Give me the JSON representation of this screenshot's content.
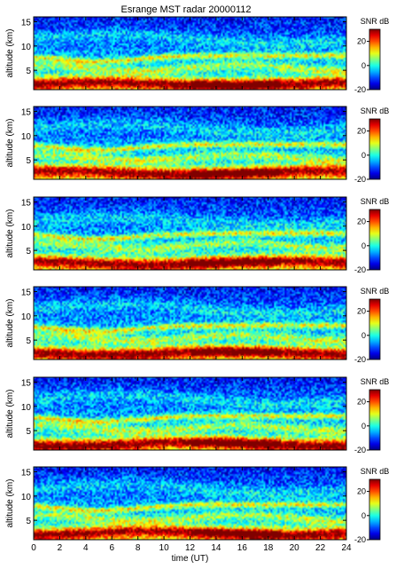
{
  "figure": {
    "title": "Esrange MST radar 20000112"
  },
  "colors": {
    "colormap": "jet",
    "text": "#000000",
    "axis": "#000000"
  },
  "chart_data": [
    {
      "type": "heatmap",
      "title": "Esrange MST radar 20000112",
      "xlabel": "",
      "ylabel": "altitude (km)",
      "xlim": [
        0,
        24
      ],
      "ylim": [
        1,
        16
      ],
      "xticks": [
        0,
        2,
        4,
        6,
        8,
        10,
        12,
        14,
        16,
        18,
        20,
        22,
        24
      ],
      "yticks": [
        5,
        10,
        15
      ],
      "colorbar": {
        "label": "SNR dB",
        "range": [
          -20,
          30
        ],
        "ticks": [
          20,
          0,
          -20
        ]
      },
      "features": {
        "strong_layer_low_km": 2.2,
        "layer_mid_km": 5.5,
        "tropopause_km": 8.0,
        "upper_layer_km": 11.5
      }
    },
    {
      "type": "heatmap",
      "xlabel": "",
      "ylabel": "altitude (km)",
      "xlim": [
        0,
        24
      ],
      "ylim": [
        1,
        16
      ],
      "xticks": [
        0,
        2,
        4,
        6,
        8,
        10,
        12,
        14,
        16,
        18,
        20,
        22,
        24
      ],
      "yticks": [
        5,
        10,
        15
      ],
      "colorbar": {
        "label": "SNR dB",
        "range": [
          -20,
          30
        ],
        "ticks": [
          20,
          0,
          -20
        ]
      },
      "features": {
        "strong_layer_low_km": 2.4,
        "layer_mid_km": 5.5,
        "tropopause_km": 8.2,
        "upper_layer_km": 11.5
      }
    },
    {
      "type": "heatmap",
      "xlabel": "",
      "ylabel": "altitude (km)",
      "xlim": [
        0,
        24
      ],
      "ylim": [
        1,
        16
      ],
      "xticks": [
        0,
        2,
        4,
        6,
        8,
        10,
        12,
        14,
        16,
        18,
        20,
        22,
        24
      ],
      "yticks": [
        5,
        10,
        15
      ],
      "colorbar": {
        "label": "SNR dB",
        "range": [
          -20,
          30
        ],
        "ticks": [
          20,
          0,
          -20
        ]
      },
      "features": {
        "strong_layer_low_km": 2.5,
        "layer_mid_km": 6.0,
        "tropopause_km": 8.5,
        "upper_layer_km": 11.0
      }
    },
    {
      "type": "heatmap",
      "xlabel": "",
      "ylabel": "altitude (km)",
      "xlim": [
        0,
        24
      ],
      "ylim": [
        1,
        16
      ],
      "xticks": [
        0,
        2,
        4,
        6,
        8,
        10,
        12,
        14,
        16,
        18,
        20,
        22,
        24
      ],
      "yticks": [
        5,
        10,
        15
      ],
      "colorbar": {
        "label": "SNR dB",
        "range": [
          -20,
          30
        ],
        "ticks": [
          20,
          0,
          -20
        ]
      },
      "features": {
        "strong_layer_low_km": 2.4,
        "layer_mid_km": 5.5,
        "tropopause_km": 8.0,
        "upper_layer_km": 11.5
      }
    },
    {
      "type": "heatmap",
      "xlabel": "",
      "ylabel": "altitude (km)",
      "xlim": [
        0,
        24
      ],
      "ylim": [
        1,
        16
      ],
      "xticks": [
        0,
        2,
        4,
        6,
        8,
        10,
        12,
        14,
        16,
        18,
        20,
        22,
        24
      ],
      "yticks": [
        5,
        10,
        15
      ],
      "colorbar": {
        "label": "SNR dB",
        "range": [
          -20,
          30
        ],
        "ticks": [
          20,
          0,
          -20
        ]
      },
      "features": {
        "strong_layer_low_km": 2.3,
        "layer_mid_km": 5.5,
        "tropopause_km": 8.0,
        "upper_layer_km": 11.5
      }
    },
    {
      "type": "heatmap",
      "xlabel": "time (UT)",
      "ylabel": "altitude (km)",
      "xlim": [
        0,
        24
      ],
      "ylim": [
        1,
        16
      ],
      "xticks": [
        0,
        2,
        4,
        6,
        8,
        10,
        12,
        14,
        16,
        18,
        20,
        22,
        24
      ],
      "yticks": [
        5,
        10,
        15
      ],
      "colorbar": {
        "label": "SNR dB",
        "range": [
          -20,
          30
        ],
        "ticks": [
          20,
          0,
          -20
        ]
      },
      "features": {
        "strong_layer_low_km": 2.4,
        "layer_mid_km": 5.5,
        "tropopause_km": 8.2,
        "upper_layer_km": 11.5
      }
    }
  ]
}
